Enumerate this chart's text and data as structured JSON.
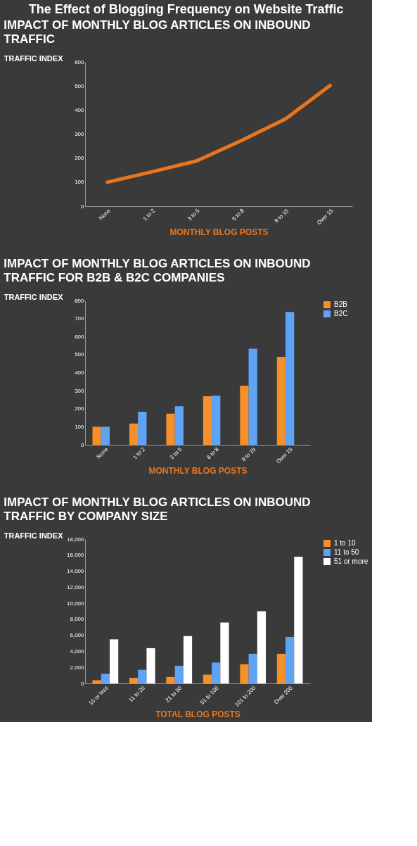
{
  "chart_data": [
    {
      "type": "line",
      "title": "IMPACT OF MONTHLY BLOG ARTICLES ON INBOUND TRAFFIC",
      "annotations": [
        "The Effect of Blogging Frequency on Website Traffic"
      ],
      "xlabel": "MONTHLY BLOG POSTS",
      "ylabel": "TRAFFIC INDEX",
      "categories": [
        "None",
        "1 to 2",
        "3 to 5",
        "6 to 8",
        "9 to 15",
        "Over 15"
      ],
      "series": [
        {
          "color": "#e8761e",
          "values": [
            100,
            143,
            188,
            272,
            363,
            502
          ]
        }
      ],
      "ylim": [
        0,
        600
      ],
      "yticks": [
        0,
        100,
        200,
        300,
        400,
        500,
        600
      ],
      "grid": false,
      "legend": false,
      "marker": "none",
      "line_style": "solid"
    },
    {
      "type": "bar",
      "title": "IMPACT OF MONTHLY BLOG ARTICLES ON INBOUND TRAFFIC FOR B2B & B2C COMPANIES",
      "xlabel": "MONTHLY BLOG POSTS",
      "ylabel": "TRAFFIC INDEX",
      "categories": [
        "None",
        "1 to 2",
        "3 to 5",
        "6 to 8",
        "9 to 15",
        "Over 15"
      ],
      "series": [
        {
          "name": "B2B",
          "color": "#f5902a",
          "values": [
            100,
            118,
            173,
            269,
            328,
            488
          ]
        },
        {
          "name": "B2C",
          "color": "#5fa3f7",
          "values": [
            100,
            183,
            214,
            272,
            533,
            737
          ]
        }
      ],
      "ylim": [
        0,
        800
      ],
      "yticks": [
        0,
        100,
        200,
        300,
        400,
        500,
        600,
        700,
        800
      ],
      "grid": false,
      "legend": "right"
    },
    {
      "type": "bar",
      "title": "IMPACT OF MONTHLY BLOG ARTICLES ON INBOUND TRAFFIC BY COMPANY SIZE",
      "xlabel": "TOTAL BLOG POSTS",
      "ylabel": "TRAFFIC INDEX",
      "categories": [
        "10 or less",
        "11 to 20",
        "21 to 50",
        "51 to 100",
        "101 to 200",
        "Over 200"
      ],
      "series": [
        {
          "name": "1 to 10",
          "color": "#f5902a",
          "values": [
            400,
            700,
            800,
            1100,
            2400,
            3700
          ]
        },
        {
          "name": "11 to 50",
          "color": "#5fa3f7",
          "values": [
            1200,
            1700,
            2200,
            2600,
            3700,
            5800
          ]
        },
        {
          "name": "51 or more",
          "color": "#ffffff",
          "values": [
            5500,
            4400,
            5900,
            7600,
            9000,
            15800
          ]
        }
      ],
      "ylim": [
        0,
        18000
      ],
      "yticks": [
        0,
        {
          "value": 2000,
          "label": "2,000"
        },
        {
          "value": 4000,
          "label": "4,000"
        },
        {
          "value": 6000,
          "label": "6,000"
        },
        {
          "value": 8000,
          "label": "8,000"
        },
        {
          "value": 10000,
          "label": "10,000"
        },
        {
          "value": 12000,
          "label": "12,000"
        },
        {
          "value": 14000,
          "label": "14,000"
        },
        {
          "value": 16000,
          "label": "16,000"
        },
        {
          "value": 18000,
          "label": "18,000"
        }
      ],
      "grid": false,
      "legend": "right"
    }
  ]
}
